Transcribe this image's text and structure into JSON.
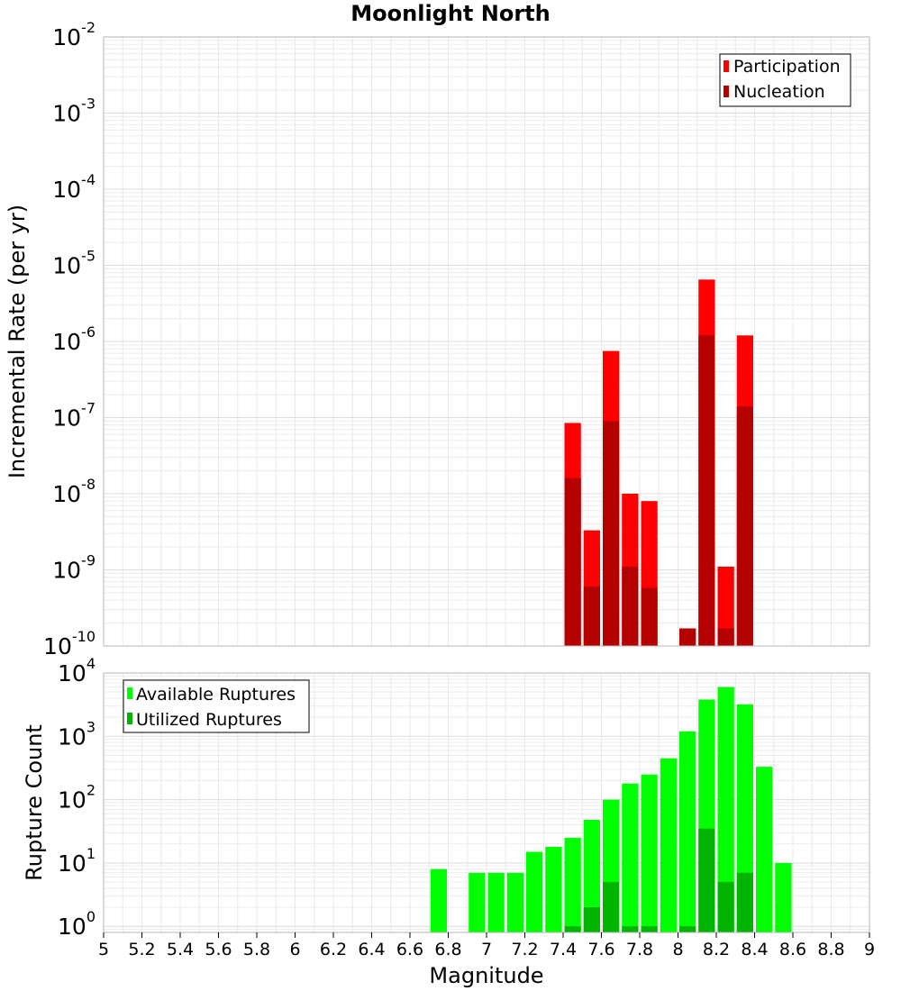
{
  "chart_data": [
    {
      "type": "bar",
      "title": "Moonlight North",
      "xlabel": "",
      "ylabel": "Incremental Rate (per yr)",
      "yscale": "log",
      "ylim": [
        1e-10,
        0.01
      ],
      "xlim": [
        5,
        9
      ],
      "grid": true,
      "legend_position": "top-right",
      "y_tick_exponents": [
        "-10",
        "-9",
        "-8",
        "-7",
        "-6",
        "-5",
        "-4",
        "-3",
        "-2"
      ],
      "bar_width": 0.1,
      "series": [
        {
          "name": "Participation",
          "color": "#ff0000",
          "x": [
            7.45,
            7.55,
            7.65,
            7.75,
            7.85,
            8.05,
            8.15,
            8.25,
            8.35
          ],
          "values": [
            8.5e-08,
            3.3e-09,
            7.5e-07,
            1e-08,
            8e-09,
            1.7e-10,
            6.5e-06,
            1.1e-09,
            1.2e-06
          ]
        },
        {
          "name": "Nucleation",
          "color": "#b50000",
          "x": [
            7.45,
            7.55,
            7.65,
            7.75,
            7.85,
            8.05,
            8.15,
            8.25,
            8.35
          ],
          "values": [
            1.6e-08,
            6e-10,
            9e-08,
            1.1e-09,
            5.8e-10,
            1.7e-10,
            1.2e-06,
            1.7e-10,
            1.4e-07
          ]
        }
      ]
    },
    {
      "type": "bar",
      "title": "",
      "xlabel": "Magnitude",
      "ylabel": "Rupture Count",
      "yscale": "log",
      "ylim": [
        0.8,
        10000
      ],
      "xlim": [
        5,
        9
      ],
      "grid": true,
      "legend_position": "top-left",
      "y_tick_exponents": [
        "0",
        "1",
        "2",
        "3",
        "4"
      ],
      "x_ticks": [
        "5",
        "5.2",
        "5.4",
        "5.6",
        "5.8",
        "6",
        "6.2",
        "6.4",
        "6.6",
        "6.8",
        "7",
        "7.2",
        "7.4",
        "7.6",
        "7.8",
        "8",
        "8.2",
        "8.4",
        "8.6",
        "8.8",
        "9"
      ],
      "bar_width": 0.1,
      "series": [
        {
          "name": "Available Ruptures",
          "color": "#00ff00",
          "x": [
            6.75,
            6.95,
            7.05,
            7.15,
            7.25,
            7.35,
            7.45,
            7.55,
            7.65,
            7.75,
            7.85,
            7.95,
            8.05,
            8.15,
            8.25,
            8.35,
            8.45,
            8.55
          ],
          "values": [
            8,
            7,
            7,
            7,
            15,
            18,
            25,
            48,
            100,
            180,
            250,
            450,
            1200,
            3800,
            6000,
            3200,
            330,
            10
          ]
        },
        {
          "name": "Utilized Ruptures",
          "color": "#00b400",
          "x": [
            7.45,
            7.55,
            7.65,
            7.75,
            7.85,
            8.05,
            8.15,
            8.25,
            8.35
          ],
          "values": [
            1,
            2,
            5,
            1,
            1,
            1,
            35,
            5,
            7
          ]
        }
      ]
    }
  ]
}
